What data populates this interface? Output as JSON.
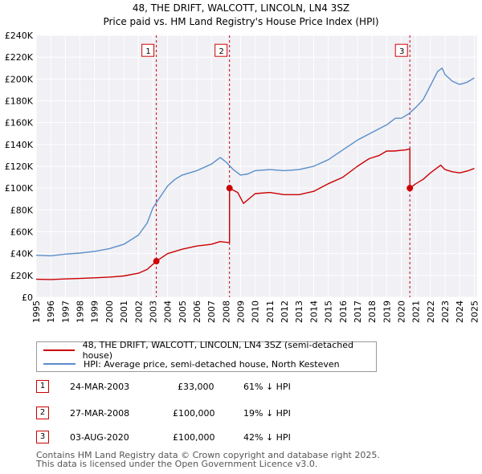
{
  "chart_data": {
    "type": "line",
    "title": "48, THE DRIFT, WALCOTT, LINCOLN, LN4 3SZ",
    "subtitle": "Price paid vs. HM Land Registry's House Price Index (HPI)",
    "xlabel": "",
    "ylabel": "",
    "xlim": [
      1995,
      2025.2
    ],
    "ylim": [
      0,
      240000
    ],
    "y_ticks": [
      0,
      20000,
      40000,
      60000,
      80000,
      100000,
      120000,
      140000,
      160000,
      180000,
      200000,
      220000,
      240000
    ],
    "y_tick_labels": [
      "£0",
      "£20K",
      "£40K",
      "£60K",
      "£80K",
      "£100K",
      "£120K",
      "£140K",
      "£160K",
      "£180K",
      "£200K",
      "£220K",
      "£240K"
    ],
    "x_ticks": [
      1995,
      1996,
      1997,
      1998,
      1999,
      2000,
      2001,
      2002,
      2003,
      2004,
      2005,
      2006,
      2007,
      2008,
      2009,
      2010,
      2011,
      2012,
      2013,
      2014,
      2015,
      2016,
      2017,
      2018,
      2019,
      2020,
      2021,
      2022,
      2023,
      2024,
      2025
    ],
    "x_tick_labels": [
      "1995",
      "1996",
      "1997",
      "1998",
      "1999",
      "2000",
      "2001",
      "2002",
      "2003",
      "2004",
      "2005",
      "2006",
      "2007",
      "2008",
      "2009",
      "2010",
      "2011",
      "2012",
      "2013",
      "2014",
      "2015",
      "2016",
      "2017",
      "2018",
      "2019",
      "2020",
      "2021",
      "2022",
      "2023",
      "2024",
      "2025"
    ],
    "grid": true,
    "series": [
      {
        "name": "48, THE DRIFT, WALCOTT, LINCOLN, LN4 3SZ (semi-detached house)",
        "color": "#cc0000",
        "x": [
          1995,
          1996,
          1997,
          1998,
          1999,
          2000,
          2001,
          2002,
          2002.6,
          2003.23,
          2003.23,
          2004,
          2005,
          2006,
          2007,
          2007.6,
          2008.24,
          2008.24,
          2008.8,
          2009.2,
          2010,
          2011,
          2012,
          2013,
          2014,
          2015,
          2016,
          2017,
          2017.8,
          2018.5,
          2019,
          2019.5,
          2020.3,
          2020.59,
          2020.59,
          2021,
          2021.5,
          2022,
          2022.7,
          2023,
          2023.5,
          2024,
          2024.6,
          2025
        ],
        "y": [
          16500,
          16300,
          16800,
          17200,
          17800,
          18500,
          19500,
          22000,
          25500,
          33000,
          33000,
          40000,
          44000,
          47000,
          48500,
          51000,
          50000,
          100000,
          96000,
          86000,
          95000,
          96000,
          94000,
          94000,
          97000,
          104000,
          110000,
          120000,
          127000,
          130000,
          134000,
          134000,
          135000,
          136000,
          100000,
          104000,
          108000,
          114000,
          121000,
          117000,
          115000,
          114000,
          116000,
          118000
        ]
      },
      {
        "name": "HPI: Average price, semi-detached house, North Kesteven",
        "color": "#5b8ec9",
        "x": [
          1995,
          1996,
          1997,
          1998,
          1999,
          2000,
          2001,
          2002,
          2002.6,
          2003,
          2003.5,
          2004,
          2004.5,
          2005,
          2006,
          2007,
          2007.6,
          2008,
          2008.5,
          2009,
          2009.5,
          2010,
          2011,
          2012,
          2013,
          2014,
          2015,
          2016,
          2017,
          2018,
          2019,
          2019.6,
          2020,
          2020.5,
          2021,
          2021.5,
          2022,
          2022.5,
          2022.8,
          2023,
          2023.5,
          2024,
          2024.5,
          2025
        ],
        "y": [
          38500,
          38000,
          39500,
          40500,
          42000,
          44500,
          48500,
          57000,
          68000,
          82000,
          92000,
          102000,
          108000,
          112000,
          116000,
          122000,
          128000,
          124000,
          117000,
          112000,
          113000,
          116000,
          117000,
          116000,
          117000,
          120000,
          126000,
          135000,
          144000,
          151000,
          158000,
          164000,
          164000,
          168000,
          174000,
          181000,
          194000,
          207000,
          210000,
          204000,
          198000,
          195000,
          197000,
          201000
        ]
      }
    ],
    "sale_markers": [
      {
        "id": "1",
        "x": 2003.23,
        "y": 33000
      },
      {
        "id": "2",
        "x": 2008.24,
        "y": 100000
      },
      {
        "id": "3",
        "x": 2020.59,
        "y": 100000
      }
    ],
    "marker_label_value": 220000
  },
  "legend": {
    "property_label": "48, THE DRIFT, WALCOTT, LINCOLN, LN4 3SZ (semi-detached house)",
    "hpi_label": "HPI: Average price, semi-detached house, North Kesteven"
  },
  "sales": [
    {
      "id": "1",
      "date": "24-MAR-2003",
      "price": "£33,000",
      "hpi_diff": "61% ↓ HPI"
    },
    {
      "id": "2",
      "date": "27-MAR-2008",
      "price": "£100,000",
      "hpi_diff": "19% ↓ HPI"
    },
    {
      "id": "3",
      "date": "03-AUG-2020",
      "price": "£100,000",
      "hpi_diff": "42% ↓ HPI"
    }
  ],
  "footer": {
    "line1": "Contains HM Land Registry data © Crown copyright and database right 2025.",
    "line2": "This data is licensed under the Open Government Licence v3.0."
  }
}
